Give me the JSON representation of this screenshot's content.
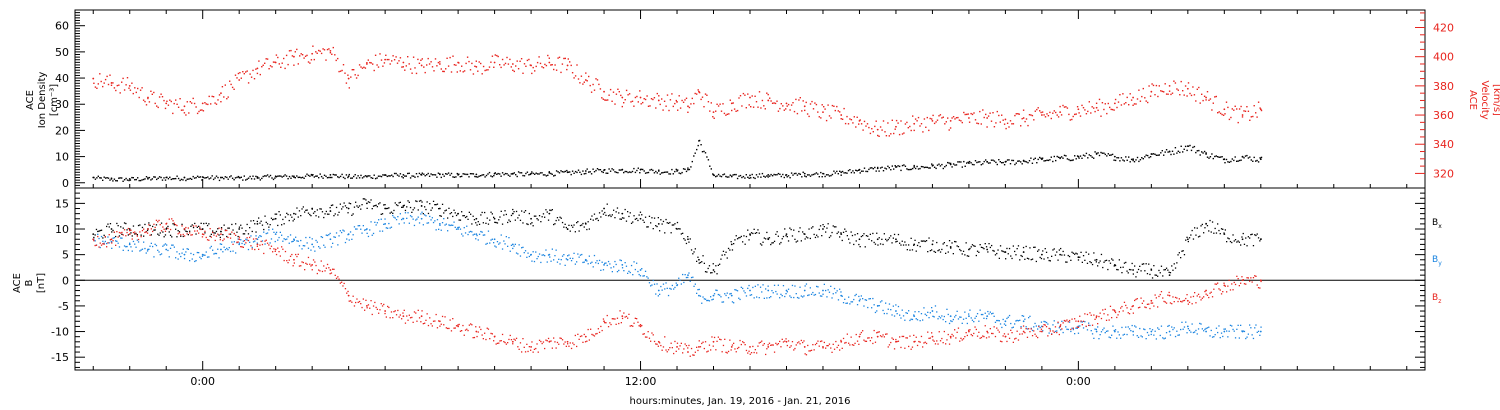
{
  "chart_data": [
    {
      "type": "scatter",
      "panel": "top",
      "ylabel_left": [
        "ACE",
        "Ion Density",
        "[cm⁻³]"
      ],
      "ylabel_right": [
        "ACE",
        "Velocity",
        "[km/s]"
      ],
      "ylim_left": [
        -2,
        66
      ],
      "ylim_right": [
        310,
        432
      ],
      "yticks_left": [
        0,
        10,
        20,
        30,
        40,
        50,
        60
      ],
      "yticks_right": [
        320,
        340,
        360,
        380,
        400,
        420
      ],
      "series": [
        {
          "name": "",
          "axis": "left",
          "color": "#000000",
          "x": [
            -3,
            -2.5,
            -2,
            -1.5,
            -1,
            -0.5,
            0,
            0.5,
            1,
            1.5,
            2,
            2.5,
            3,
            3.5,
            4,
            4.5,
            5,
            5.5,
            6,
            6.5,
            7,
            7.5,
            8,
            8.5,
            9,
            9.5,
            10,
            10.5,
            11,
            11.5,
            12,
            12.5,
            13,
            13.3,
            13.6,
            14,
            14.5,
            15,
            15.5,
            16,
            16.5,
            17,
            17.5,
            18,
            18.5,
            19,
            19.5,
            20,
            20.5,
            21,
            21.5,
            22,
            22.5,
            23,
            23.5,
            24,
            24.5,
            25,
            25.5,
            26,
            26.5,
            27,
            27.5,
            28,
            28.5,
            29
          ],
          "y": [
            2,
            1.5,
            1.5,
            1.8,
            2,
            2,
            2.2,
            2,
            2,
            2.2,
            2.5,
            2.5,
            2.8,
            3,
            2.5,
            2.5,
            3,
            3,
            3,
            3.2,
            3,
            3.2,
            3.5,
            3.5,
            3.5,
            3.8,
            4,
            4.5,
            4.8,
            5,
            5,
            4.5,
            4.5,
            5,
            16,
            3,
            2.5,
            2.8,
            3,
            3,
            3.5,
            3.5,
            4,
            5,
            5.5,
            6,
            6,
            6.5,
            7,
            7.5,
            8,
            8,
            8.5,
            9,
            9.5,
            10,
            11,
            10,
            9,
            11,
            12,
            14,
            11,
            9,
            10,
            9
          ]
        },
        {
          "name": "",
          "axis": "right",
          "color": "#e8241e",
          "x": [
            -3,
            -2.5,
            -2,
            -1.5,
            -1,
            -0.5,
            0,
            0.5,
            1,
            1.5,
            2,
            2.5,
            3,
            3.5,
            4,
            4.5,
            5,
            5.5,
            6,
            6.5,
            7,
            7.5,
            8,
            8.5,
            9,
            9.5,
            10,
            10.5,
            11,
            11.5,
            12,
            12.5,
            13,
            13.3,
            13.6,
            14,
            14.5,
            15,
            15.5,
            16,
            16.5,
            17,
            17.5,
            18,
            18.5,
            19,
            19.5,
            20,
            20.5,
            21,
            21.5,
            22,
            22.5,
            23,
            23.5,
            24,
            24.5,
            25,
            25.5,
            26,
            26.5,
            27,
            27.5,
            28,
            28.5,
            29
          ],
          "y": [
            385,
            382,
            380,
            372,
            368,
            366,
            368,
            375,
            384,
            392,
            396,
            400,
            402,
            404,
            385,
            395,
            398,
            396,
            394,
            395,
            396,
            393,
            396,
            395,
            394,
            396,
            394,
            384,
            376,
            372,
            372,
            370,
            369,
            366,
            376,
            362,
            368,
            372,
            370,
            368,
            366,
            362,
            360,
            356,
            350,
            352,
            354,
            356,
            356,
            358,
            358,
            357,
            358,
            360,
            362,
            364,
            365,
            368,
            372,
            376,
            380,
            378,
            372,
            364,
            360,
            364
          ]
        }
      ]
    },
    {
      "type": "scatter",
      "panel": "bottom",
      "ylabel_left": [
        "ACE",
        "B",
        "[nT]"
      ],
      "ylim": [
        -17.5,
        18
      ],
      "yticks": [
        -15,
        -10,
        -5,
        0,
        5,
        10,
        15
      ],
      "zero_line": true,
      "series": [
        {
          "name": "Bx",
          "color": "#000000",
          "x": [
            -3,
            -2.5,
            -2,
            -1.5,
            -1,
            -0.5,
            0,
            0.5,
            1,
            1.5,
            2,
            2.5,
            3,
            3.5,
            4,
            4.5,
            5,
            5.5,
            6,
            6.5,
            7,
            7.5,
            8,
            8.5,
            9,
            9.5,
            10,
            10.5,
            11,
            11.5,
            12,
            12.5,
            13,
            13.3,
            13.6,
            14,
            14.5,
            15,
            15.5,
            16,
            16.5,
            17,
            17.5,
            18,
            18.5,
            19,
            19.5,
            20,
            20.5,
            21,
            21.5,
            22,
            22.5,
            23,
            23.5,
            24,
            24.5,
            25,
            25.5,
            26,
            26.5,
            27,
            27.5,
            28,
            28.5,
            29
          ],
          "y": [
            9,
            10,
            10,
            10,
            10,
            10,
            10,
            9.5,
            10,
            11,
            12,
            13,
            14,
            13.5,
            14,
            15,
            14,
            14.5,
            14.5,
            14,
            13,
            12,
            12,
            13,
            12,
            13,
            10,
            11,
            14,
            13,
            12,
            11,
            10,
            8,
            4,
            2,
            7,
            9,
            8,
            9,
            9,
            10,
            9,
            8,
            8,
            8,
            7,
            7,
            6.5,
            6,
            6,
            5.5,
            5.5,
            5,
            5,
            4.5,
            4,
            3,
            2,
            2,
            1,
            8,
            11,
            9,
            8,
            8
          ]
        },
        {
          "name": "By",
          "color": "#1a84e0",
          "x": [
            -3,
            -2.5,
            -2,
            -1.5,
            -1,
            -0.5,
            0,
            0.5,
            1,
            1.5,
            2,
            2.5,
            3,
            3.5,
            4,
            4.5,
            5,
            5.5,
            6,
            6.5,
            7,
            7.5,
            8,
            8.5,
            9,
            9.5,
            10,
            10.5,
            11,
            11.5,
            12,
            12.5,
            13,
            13.3,
            13.6,
            14,
            14.5,
            15,
            15.5,
            16,
            16.5,
            17,
            17.5,
            18,
            18.5,
            19,
            19.5,
            20,
            20.5,
            21,
            21.5,
            22,
            22.5,
            23,
            23.5,
            24,
            24.5,
            25,
            25.5,
            26,
            26.5,
            27,
            27.5,
            28,
            28.5,
            29
          ],
          "y": [
            8,
            7.5,
            7,
            6,
            6,
            5,
            5,
            6,
            7,
            8,
            9,
            8,
            7,
            8,
            9,
            10,
            11,
            12,
            12,
            11,
            10,
            9,
            8,
            7,
            5,
            5,
            4,
            4,
            3,
            3,
            2,
            -2,
            -1,
            1,
            -3,
            -3,
            -3,
            -2,
            -2,
            -2,
            -2,
            -2,
            -3,
            -4,
            -5,
            -6,
            -7,
            -6,
            -7,
            -7,
            -7,
            -8,
            -8,
            -9,
            -9,
            -9,
            -10,
            -10,
            -10,
            -10,
            -10,
            -9,
            -10,
            -10,
            -10,
            -10
          ]
        },
        {
          "name": "Bz",
          "color": "#e8241e",
          "x": [
            -3,
            -2.5,
            -2,
            -1.5,
            -1,
            -0.5,
            0,
            0.5,
            1,
            1.5,
            2,
            2.5,
            3,
            3.5,
            4,
            4.5,
            5,
            5.5,
            6,
            6.5,
            7,
            7.5,
            8,
            8.5,
            9,
            9.5,
            10,
            10.5,
            11,
            11.5,
            12,
            12.5,
            13,
            13.3,
            13.6,
            14,
            14.5,
            15,
            15.5,
            16,
            16.5,
            17,
            17.5,
            18,
            18.5,
            19,
            19.5,
            20,
            20.5,
            21,
            21.5,
            22,
            22.5,
            23,
            23.5,
            24,
            24.5,
            25,
            25.5,
            26,
            26.5,
            27,
            27.5,
            28,
            28.5,
            29
          ],
          "y": [
            8,
            8,
            9,
            10,
            11,
            10,
            9,
            9,
            8,
            7,
            6,
            4,
            3,
            2,
            -3,
            -5,
            -6,
            -7,
            -7,
            -8,
            -9,
            -10,
            -11,
            -12,
            -13,
            -12,
            -12,
            -11,
            -8,
            -7,
            -9,
            -12,
            -13,
            -14,
            -13,
            -12,
            -13,
            -13,
            -13,
            -12,
            -13,
            -13,
            -12,
            -11,
            -11,
            -12,
            -12,
            -11,
            -11,
            -10,
            -10,
            -11,
            -10,
            -10,
            -9,
            -8,
            -7,
            -6,
            -5,
            -4,
            -3,
            -4,
            -2,
            -1,
            0,
            0
          ]
        }
      ]
    }
  ],
  "xaxis": {
    "ticks": [
      0,
      12,
      24
    ],
    "tick_labels": [
      "0:00",
      "12:00",
      "0:00"
    ],
    "label": "hours:minutes, Jan. 19, 2016 - Jan. 21, 2016"
  },
  "legend": {
    "bx": "B",
    "bx_sub": "x",
    "by": "B",
    "by_sub": "y",
    "bz": "B",
    "bz_sub": "z"
  }
}
